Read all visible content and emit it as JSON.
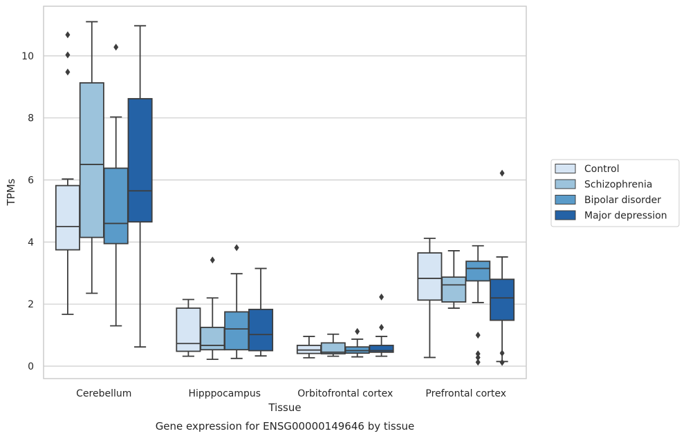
{
  "chart_data": {
    "type": "box",
    "title": "",
    "caption": "Gene expression for ENSG00000149646 by tissue",
    "xlabel": "Tissue",
    "ylabel": "TPMs",
    "ylim": [
      -0.4,
      11.6
    ],
    "yticks": [
      0,
      2,
      4,
      6,
      8,
      10
    ],
    "grid": true,
    "legend_position": "right",
    "categories": [
      "Cerebellum",
      "Hipppocampus",
      "Orbitofrontal cortex",
      "Prefrontal cortex"
    ],
    "series": [
      {
        "name": "Control",
        "color": "#d6e5f4",
        "boxes": [
          {
            "whislo": 1.67,
            "q1": 3.75,
            "med": 4.5,
            "q3": 5.82,
            "whishi": 6.03,
            "fliers": [
              9.48,
              10.03,
              10.68
            ]
          },
          {
            "whislo": 0.32,
            "q1": 0.48,
            "med": 0.73,
            "q3": 1.87,
            "whishi": 2.15,
            "fliers": []
          },
          {
            "whislo": 0.27,
            "q1": 0.41,
            "med": 0.52,
            "q3": 0.67,
            "whishi": 0.96,
            "fliers": []
          },
          {
            "whislo": 0.28,
            "q1": 2.13,
            "med": 2.83,
            "q3": 3.65,
            "whishi": 4.12,
            "fliers": []
          }
        ]
      },
      {
        "name": "Schizophrenia",
        "color": "#9cc3dc",
        "boxes": [
          {
            "whislo": 2.35,
            "q1": 4.15,
            "med": 6.5,
            "q3": 9.13,
            "whishi": 11.1,
            "fliers": []
          },
          {
            "whislo": 0.22,
            "q1": 0.53,
            "med": 0.67,
            "q3": 1.25,
            "whishi": 2.2,
            "fliers": [
              3.42
            ]
          },
          {
            "whislo": 0.32,
            "q1": 0.4,
            "med": 0.45,
            "q3": 0.75,
            "whishi": 1.03,
            "fliers": []
          },
          {
            "whislo": 1.87,
            "q1": 2.07,
            "med": 2.62,
            "q3": 2.87,
            "whishi": 3.72,
            "fliers": []
          }
        ]
      },
      {
        "name": "Bipolar disorder",
        "color": "#5a9bc9",
        "boxes": [
          {
            "whislo": 1.3,
            "q1": 3.95,
            "med": 4.6,
            "q3": 6.38,
            "whishi": 8.03,
            "fliers": [
              10.28
            ]
          },
          {
            "whislo": 0.25,
            "q1": 0.53,
            "med": 1.2,
            "q3": 1.75,
            "whishi": 2.98,
            "fliers": [
              3.82
            ]
          },
          {
            "whislo": 0.3,
            "q1": 0.42,
            "med": 0.5,
            "q3": 0.62,
            "whishi": 0.87,
            "fliers": [
              1.12
            ]
          },
          {
            "whislo": 2.05,
            "q1": 2.75,
            "med": 3.15,
            "q3": 3.38,
            "whishi": 3.88,
            "fliers": [
              1.0,
              0.4,
              0.28,
              0.13
            ]
          }
        ]
      },
      {
        "name": "Major depression",
        "color": "#2462a6",
        "boxes": [
          {
            "whislo": 0.62,
            "q1": 4.65,
            "med": 5.65,
            "q3": 8.62,
            "whishi": 10.97,
            "fliers": []
          },
          {
            "whislo": 0.33,
            "q1": 0.5,
            "med": 1.02,
            "q3": 1.83,
            "whishi": 3.15,
            "fliers": []
          },
          {
            "whislo": 0.32,
            "q1": 0.45,
            "med": 0.5,
            "q3": 0.67,
            "whishi": 0.96,
            "fliers": [
              1.25,
              2.23
            ]
          },
          {
            "whislo": 0.15,
            "q1": 1.48,
            "med": 2.2,
            "q3": 2.8,
            "whishi": 3.52,
            "fliers": [
              6.22,
              0.42,
              0.12
            ]
          }
        ]
      }
    ]
  }
}
